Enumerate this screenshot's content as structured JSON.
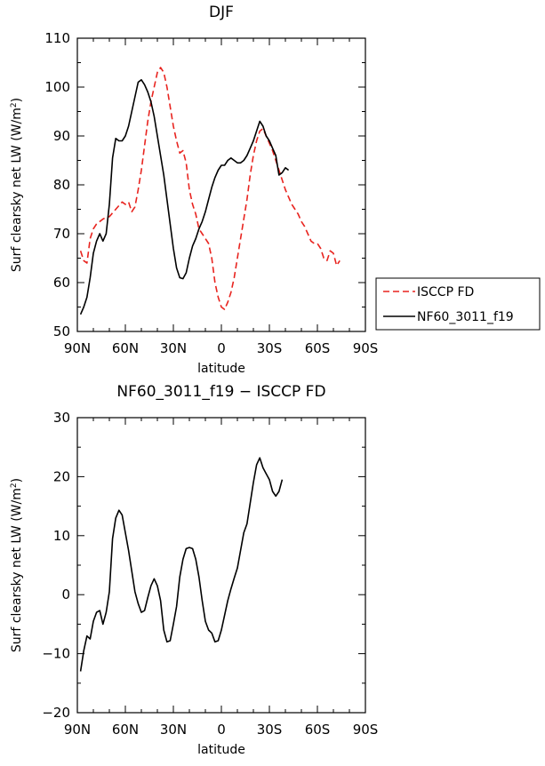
{
  "chart_data": [
    {
      "type": "line",
      "title": "DJF",
      "xlabel": "latitude",
      "ylabel": "Surf clearsky net LW (W/m²)",
      "ylabel_main": "Surf clearsky net LW (W/m",
      "ylabel_sup": "2",
      "ylabel_end": ")",
      "xlim": [
        -90,
        90
      ],
      "ylim": [
        50,
        110
      ],
      "x_ticks": [
        -90,
        -60,
        -30,
        0,
        30,
        60,
        90
      ],
      "x_tick_labels": [
        "90N",
        "60N",
        "30N",
        "0",
        "30S",
        "60S",
        "90S"
      ],
      "y_ticks": [
        50,
        60,
        70,
        80,
        90,
        100,
        110
      ],
      "y_tick_labels": [
        "50",
        "60",
        "70",
        "80",
        "90",
        "100",
        "110"
      ],
      "legend_position": "outside-right",
      "series": [
        {
          "name": "ISCCP FD",
          "color": "#e8241f",
          "dash": "dashed",
          "points": [
            [
              -88,
              66.5
            ],
            [
              -86,
              64.5
            ],
            [
              -84,
              64
            ],
            [
              -82,
              69
            ],
            [
              -80,
              71
            ],
            [
              -78,
              72
            ],
            [
              -76,
              72.5
            ],
            [
              -74,
              73
            ],
            [
              -72,
              73.3
            ],
            [
              -70,
              73.5
            ],
            [
              -66,
              75
            ],
            [
              -62,
              76.5
            ],
            [
              -60,
              76
            ],
            [
              -58,
              76.5
            ],
            [
              -56,
              74.5
            ],
            [
              -54,
              75.5
            ],
            [
              -52,
              79
            ],
            [
              -50,
              83
            ],
            [
              -48,
              88
            ],
            [
              -46,
              93
            ],
            [
              -44,
              97
            ],
            [
              -42,
              100
            ],
            [
              -40,
              103
            ],
            [
              -38,
              104
            ],
            [
              -36,
              103
            ],
            [
              -34,
              100
            ],
            [
              -32,
              96
            ],
            [
              -30,
              92
            ],
            [
              -28,
              89
            ],
            [
              -26,
              86.5
            ],
            [
              -24,
              87
            ],
            [
              -22,
              84.5
            ],
            [
              -20,
              79
            ],
            [
              -18,
              76
            ],
            [
              -16,
              74
            ],
            [
              -14,
              71
            ],
            [
              -12,
              70
            ],
            [
              -10,
              69
            ],
            [
              -8,
              68
            ],
            [
              -6,
              65
            ],
            [
              -4,
              60
            ],
            [
              -2,
              57
            ],
            [
              0,
              55
            ],
            [
              2,
              54.5
            ],
            [
              4,
              56
            ],
            [
              6,
              58
            ],
            [
              8,
              61
            ],
            [
              10,
              65
            ],
            [
              12,
              69
            ],
            [
              14,
              73
            ],
            [
              16,
              77
            ],
            [
              18,
              82
            ],
            [
              20,
              86
            ],
            [
              22,
              89
            ],
            [
              24,
              91
            ],
            [
              26,
              91.5
            ],
            [
              28,
              90
            ],
            [
              30,
              88.5
            ],
            [
              32,
              87
            ],
            [
              34,
              85
            ],
            [
              36,
              83
            ],
            [
              38,
              81
            ],
            [
              40,
              79
            ],
            [
              42,
              77.5
            ],
            [
              44,
              76
            ],
            [
              46,
              75
            ],
            [
              48,
              74
            ],
            [
              50,
              72.5
            ],
            [
              52,
              71.5
            ],
            [
              54,
              70
            ],
            [
              56,
              68.5
            ],
            [
              58,
              68
            ],
            [
              60,
              68
            ],
            [
              62,
              67
            ],
            [
              64,
              65
            ],
            [
              66,
              64.5
            ],
            [
              68,
              66.5
            ],
            [
              70,
              66
            ],
            [
              72,
              63.5
            ],
            [
              74,
              64.5
            ]
          ]
        },
        {
          "name": "NF60_3011_f19",
          "color": "#000000",
          "dash": "solid",
          "points": [
            [
              -88,
              53.5
            ],
            [
              -86,
              55
            ],
            [
              -84,
              57
            ],
            [
              -82,
              61
            ],
            [
              -80,
              66
            ],
            [
              -78,
              68.5
            ],
            [
              -76,
              70
            ],
            [
              -74,
              68.5
            ],
            [
              -72,
              70
            ],
            [
              -70,
              76
            ],
            [
              -68,
              85.5
            ],
            [
              -66,
              89.5
            ],
            [
              -64,
              89
            ],
            [
              -62,
              89
            ],
            [
              -60,
              90
            ],
            [
              -58,
              92
            ],
            [
              -56,
              95
            ],
            [
              -54,
              98
            ],
            [
              -52,
              101
            ],
            [
              -50,
              101.5
            ],
            [
              -48,
              100.5
            ],
            [
              -46,
              99
            ],
            [
              -44,
              97
            ],
            [
              -42,
              94
            ],
            [
              -40,
              90
            ],
            [
              -38,
              86
            ],
            [
              -36,
              82
            ],
            [
              -34,
              77
            ],
            [
              -32,
              72
            ],
            [
              -30,
              67
            ],
            [
              -28,
              63
            ],
            [
              -26,
              61
            ],
            [
              -24,
              60.8
            ],
            [
              -22,
              62
            ],
            [
              -20,
              65
            ],
            [
              -18,
              67.5
            ],
            [
              -16,
              69
            ],
            [
              -14,
              71
            ],
            [
              -12,
              72.5
            ],
            [
              -10,
              74.5
            ],
            [
              -8,
              77
            ],
            [
              -6,
              79.5
            ],
            [
              -4,
              81.5
            ],
            [
              -2,
              83
            ],
            [
              0,
              84
            ],
            [
              2,
              84
            ],
            [
              4,
              85
            ],
            [
              6,
              85.5
            ],
            [
              8,
              85
            ],
            [
              10,
              84.5
            ],
            [
              12,
              84.5
            ],
            [
              14,
              85
            ],
            [
              16,
              86
            ],
            [
              18,
              87.5
            ],
            [
              20,
              89
            ],
            [
              22,
              91
            ],
            [
              24,
              93
            ],
            [
              26,
              92
            ],
            [
              28,
              90
            ],
            [
              30,
              89
            ],
            [
              32,
              87.5
            ],
            [
              34,
              86
            ],
            [
              36,
              82
            ],
            [
              38,
              82.5
            ],
            [
              40,
              83.5
            ],
            [
              42,
              83
            ]
          ]
        }
      ]
    },
    {
      "type": "line",
      "title": "NF60_3011_f19 − ISCCP FD",
      "xlabel": "latitude",
      "ylabel": "Surf clearsky net LW (W/m²)",
      "ylabel_main": "Surf clearsky net LW (W/m",
      "ylabel_sup": "2",
      "ylabel_end": ")",
      "xlim": [
        -90,
        90
      ],
      "ylim": [
        -20,
        30
      ],
      "x_ticks": [
        -90,
        -60,
        -30,
        0,
        30,
        60,
        90
      ],
      "x_tick_labels": [
        "90N",
        "60N",
        "30N",
        "0",
        "30S",
        "60S",
        "90S"
      ],
      "y_ticks": [
        -20,
        -10,
        0,
        10,
        20,
        30
      ],
      "y_tick_labels": [
        "−20",
        "−10",
        "0",
        "10",
        "20",
        "30"
      ],
      "series": [
        {
          "color": "#000000",
          "dash": "solid",
          "points": [
            [
              -88,
              -13
            ],
            [
              -86,
              -9.5
            ],
            [
              -84,
              -7
            ],
            [
              -82,
              -7.5
            ],
            [
              -80,
              -4.5
            ],
            [
              -78,
              -3
            ],
            [
              -76,
              -2.7
            ],
            [
              -74,
              -5
            ],
            [
              -72,
              -3
            ],
            [
              -70,
              0.5
            ],
            [
              -68,
              9.5
            ],
            [
              -66,
              13
            ],
            [
              -64,
              14.3
            ],
            [
              -62,
              13.5
            ],
            [
              -60,
              10.5
            ],
            [
              -58,
              7.5
            ],
            [
              -56,
              4
            ],
            [
              -54,
              0.5
            ],
            [
              -52,
              -1.5
            ],
            [
              -50,
              -3
            ],
            [
              -48,
              -2.7
            ],
            [
              -46,
              -0.5
            ],
            [
              -44,
              1.5
            ],
            [
              -42,
              2.7
            ],
            [
              -40,
              1.5
            ],
            [
              -38,
              -1
            ],
            [
              -36,
              -6
            ],
            [
              -34,
              -8
            ],
            [
              -32,
              -7.8
            ],
            [
              -30,
              -5
            ],
            [
              -28,
              -2
            ],
            [
              -26,
              3
            ],
            [
              -24,
              6
            ],
            [
              -22,
              7.8
            ],
            [
              -20,
              8
            ],
            [
              -18,
              7.8
            ],
            [
              -16,
              6
            ],
            [
              -14,
              3
            ],
            [
              -12,
              -1
            ],
            [
              -10,
              -4.5
            ],
            [
              -8,
              -6
            ],
            [
              -6,
              -6.5
            ],
            [
              -4,
              -8
            ],
            [
              -2,
              -7.8
            ],
            [
              0,
              -6
            ],
            [
              2,
              -3.5
            ],
            [
              4,
              -1
            ],
            [
              6,
              1
            ],
            [
              8,
              2.8
            ],
            [
              10,
              4.5
            ],
            [
              12,
              7.5
            ],
            [
              14,
              10.5
            ],
            [
              16,
              12
            ],
            [
              18,
              15.5
            ],
            [
              20,
              19
            ],
            [
              22,
              22
            ],
            [
              24,
              23.2
            ],
            [
              26,
              21.5
            ],
            [
              28,
              20.5
            ],
            [
              30,
              19.5
            ],
            [
              32,
              17.5
            ],
            [
              34,
              16.7
            ],
            [
              36,
              17.5
            ],
            [
              38,
              19.5
            ]
          ]
        }
      ]
    }
  ]
}
